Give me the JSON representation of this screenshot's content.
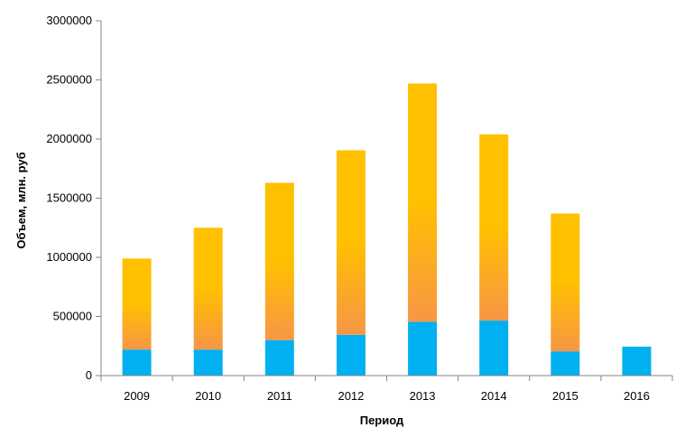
{
  "chart_data": {
    "type": "bar",
    "stacked": true,
    "categories": [
      "2009",
      "2010",
      "2011",
      "2012",
      "2013",
      "2014",
      "2015",
      "2016"
    ],
    "series": [
      {
        "values": [
          220000,
          220000,
          300000,
          345000,
          455000,
          465000,
          205000,
          245000
        ],
        "color": "#00B0F0"
      },
      {
        "values": [
          770000,
          1030000,
          1330000,
          1560000,
          2015000,
          1575000,
          1165000,
          0
        ],
        "color": "#FFC000",
        "gradient_bottom_color": "#F79646"
      }
    ],
    "title": "",
    "xlabel": "Период",
    "ylabel": "Объем, млн. руб",
    "ylim": [
      0,
      3000000
    ],
    "yticks": [
      "0",
      "500000",
      "1000000",
      "1500000",
      "2000000",
      "2500000",
      "3000000"
    ],
    "grid": false,
    "legend": "none"
  }
}
